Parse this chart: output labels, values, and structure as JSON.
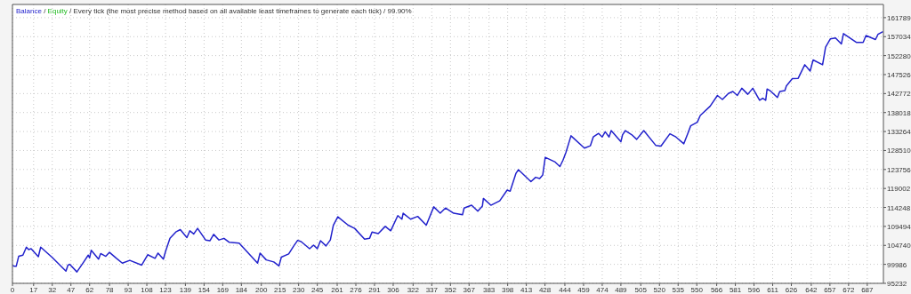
{
  "chart_data": {
    "type": "line",
    "title": "/ Every tick (the most precise method based on all available least timeframes to generate each tick) / 99.90%",
    "series": [
      {
        "name": "Balance",
        "color": "#2222cc",
        "x": [
          0,
          1.7,
          3,
          5,
          8.4,
          11.2,
          13,
          15,
          20.8,
          22.7,
          31.7,
          43,
          44.6,
          46,
          51.8,
          57.3,
          60.9,
          62,
          63.3,
          69.2,
          70.9,
          75,
          78,
          83.6,
          88.3,
          94.3,
          103.9,
          108.7,
          114.6,
          117,
          121.3,
          123,
          126.6,
          131.3,
          134.9,
          140.2,
          142.6,
          145.7,
          148.8,
          155.2,
          158.7,
          161.7,
          166,
          170,
          174.3,
          182.2,
          197,
          199,
          204,
          210,
          214.2,
          216.1,
          222,
          226.1,
          229.2,
          232,
          238.8,
          242,
          245,
          247.6,
          252,
          255.5,
          257.9,
          261.5,
          269.8,
          275,
          283,
          287,
          289,
          294,
          299.6,
          304,
          309.7,
          313,
          314,
          320,
          325.7,
          332.6,
          338.6,
          343.8,
          348,
          354.6,
          361.7,
          363,
          369,
          374,
          377.7,
          378.5,
          384.5,
          391.6,
          397.6,
          400,
          404.7,
          406.6,
          416.7,
          420.5,
          423.7,
          426.2,
          428.2,
          435.8,
          440,
          442.5,
          444.8,
          448.9,
          459.7,
          464.5,
          466.8,
          471.1,
          474,
          476.4,
          479.5,
          481.2,
          489,
          490.3,
          492.6,
          497.6,
          501.7,
          507.4,
          517,
          521.2,
          528.4,
          533.2,
          539.6,
          542.8,
          545.1,
          550.4,
          552.8,
          560.7,
          566.6,
          570.6,
          575.4,
          579,
          582.6,
          586.2,
          591,
          595,
          600.5,
          603,
          605.4,
          606.5,
          608.9,
          614.8,
          616.7,
          620.8,
          622,
          626.8,
          631.5,
          636.8,
          641.1,
          643.5,
          651.1,
          653.5,
          657.4,
          661.5,
          666.2,
          667.9,
          678.2,
          683.7,
          686,
          693.6,
          695.6,
          699.6
        ],
        "values": [
          99700,
          99500,
          99500,
          102000,
          102300,
          104300,
          103700,
          103900,
          101900,
          104300,
          101800,
          98300,
          99800,
          100000,
          98100,
          100600,
          102300,
          101600,
          103500,
          101300,
          102700,
          102000,
          103000,
          101500,
          100300,
          101000,
          99800,
          102400,
          101500,
          102800,
          101300,
          103200,
          106500,
          108100,
          108700,
          106700,
          108400,
          107600,
          109000,
          106100,
          105900,
          107500,
          106100,
          106500,
          105500,
          105300,
          100300,
          102800,
          101100,
          100600,
          99600,
          101800,
          102600,
          104600,
          106000,
          105700,
          103900,
          104800,
          103900,
          105900,
          104600,
          106100,
          109800,
          111900,
          109800,
          109000,
          106300,
          106500,
          108100,
          107700,
          109500,
          108400,
          112200,
          111300,
          112800,
          111300,
          112000,
          109800,
          114400,
          112800,
          114100,
          112800,
          112400,
          114100,
          114800,
          113300,
          114600,
          116500,
          114800,
          115900,
          118600,
          118300,
          122800,
          123700,
          120700,
          121800,
          121500,
          122400,
          126800,
          125700,
          124500,
          126100,
          128000,
          132200,
          129100,
          129700,
          131900,
          132800,
          131900,
          133200,
          131900,
          133500,
          130700,
          132400,
          133500,
          132500,
          131300,
          133500,
          129800,
          129600,
          132700,
          131900,
          130200,
          132800,
          134700,
          135600,
          137300,
          139600,
          142300,
          141300,
          142800,
          143300,
          142300,
          144100,
          142600,
          144100,
          141100,
          141600,
          141100,
          143900,
          143500,
          141800,
          143300,
          143500,
          144700,
          146500,
          146600,
          150000,
          148400,
          151200,
          150000,
          154400,
          156500,
          156700,
          155200,
          157800,
          155600,
          155600,
          157300,
          156300,
          157600,
          158300
        ]
      },
      {
        "name": "Equity",
        "color": "#22bb22"
      }
    ],
    "xlim": [
      0,
      700
    ],
    "xticks": [
      0,
      17,
      32,
      47,
      62,
      78,
      93,
      108,
      123,
      139,
      154,
      169,
      184,
      200,
      215,
      230,
      245,
      261,
      276,
      291,
      306,
      322,
      337,
      352,
      367,
      383,
      398,
      413,
      428,
      444,
      459,
      474,
      489,
      505,
      520,
      535,
      550,
      566,
      581,
      596,
      611,
      626,
      642,
      657,
      672,
      687
    ],
    "ylim": [
      95232,
      165100
    ],
    "yticks": [
      95232,
      99986,
      104740,
      109494,
      114248,
      119002,
      123756,
      128510,
      133264,
      138018,
      142772,
      147526,
      152280,
      157034,
      161789
    ],
    "annotations": [
      "/"
    ],
    "grid": true,
    "legend": "top left",
    "marker": "none",
    "line_style": "solid"
  }
}
